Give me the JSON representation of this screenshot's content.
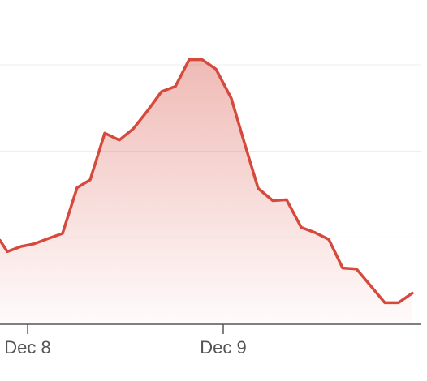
{
  "chart_data": {
    "type": "area",
    "color": "#d64a3e",
    "grid": true,
    "x": [
      -3.39,
      -2.49,
      -0.8,
      0.8,
      2.49,
      4.28,
      6.07,
      7.67,
      9.46,
      11.25,
      12.95,
      14.64,
      16.43,
      18.13,
      19.82,
      21.41,
      23.11,
      25.0,
      26.59,
      28.29,
      30.08,
      31.77,
      33.57,
      35.26,
      36.96,
      38.65,
      40.34,
      42.04,
      43.82,
      45.51,
      47.2
    ],
    "values": [
      0.97,
      0.84,
      0.9,
      0.93,
      0.99,
      1.05,
      1.58,
      1.67,
      2.21,
      2.13,
      2.26,
      2.46,
      2.69,
      2.75,
      3.06,
      3.06,
      2.95,
      2.61,
      2.1,
      1.57,
      1.43,
      1.44,
      1.12,
      1.06,
      0.98,
      0.65,
      0.64,
      0.45,
      0.25,
      0.25,
      0.36
    ],
    "xlim": [
      -3.39,
      49.0
    ],
    "xticks": [
      {
        "value": 0,
        "label": "Dec 8"
      },
      {
        "value": 24,
        "label": "Dec 9"
      }
    ],
    "ylim": [
      0,
      3.75
    ],
    "yticks": [
      1,
      2,
      3
    ]
  }
}
